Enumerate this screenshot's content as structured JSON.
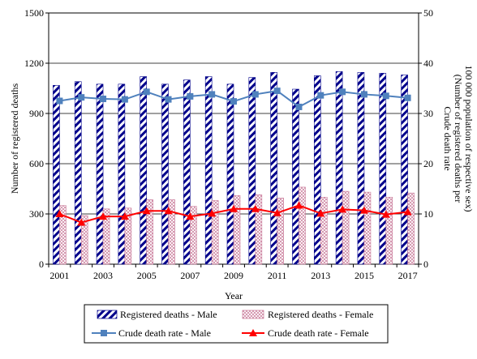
{
  "chart_data": {
    "type": "bar",
    "xlabel": "Year",
    "ylabel": "Number of registered deaths",
    "y2label_line1": "Crude death rate",
    "y2label_line2": "(Number of registered deaths per",
    "y2label_line3": "100 000 population of respective sex)",
    "ylim": [
      0,
      1500
    ],
    "y2lim": [
      0,
      50
    ],
    "yticks": [
      "0",
      "300",
      "600",
      "900",
      "1200",
      "1500"
    ],
    "y2ticks": [
      "0",
      "10",
      "20",
      "30",
      "40",
      "50"
    ],
    "categories": [
      "2001",
      "2002",
      "2003",
      "2004",
      "2005",
      "2006",
      "2007",
      "2008",
      "2009",
      "2010",
      "2011",
      "2012",
      "2013",
      "2014",
      "2015",
      "2016",
      "2017"
    ],
    "xtick_labels": [
      "2001",
      "2003",
      "2005",
      "2007",
      "2009",
      "2011",
      "2013",
      "2015",
      "2017"
    ],
    "grid": "horizontal",
    "legend_placement": "bottom",
    "bar_series": [
      {
        "name": "Registered deaths - Male",
        "color": "#00008B",
        "pattern": "diagonal-stripes",
        "values": [
          1068,
          1090,
          1075,
          1075,
          1120,
          1075,
          1100,
          1120,
          1075,
          1115,
          1145,
          1045,
          1125,
          1150,
          1145,
          1140,
          1130
        ]
      },
      {
        "name": "Registered deaths - Female",
        "color": "#C07090",
        "pattern": "crosshatch",
        "values": [
          350,
          290,
          330,
          335,
          385,
          385,
          345,
          380,
          410,
          415,
          395,
          460,
          400,
          435,
          430,
          400,
          425
        ]
      }
    ],
    "line_series": [
      {
        "name": "Crude death rate - Male",
        "color": "#4F81BD",
        "marker": "square",
        "values": [
          32.5,
          33.2,
          32.9,
          32.8,
          34.3,
          32.8,
          33.4,
          33.8,
          32.4,
          33.8,
          34.5,
          31.3,
          33.6,
          34.3,
          33.8,
          33.5,
          33.1
        ]
      },
      {
        "name": "Crude death rate - Female",
        "color": "#FF0000",
        "marker": "triangle",
        "values": [
          10.0,
          8.3,
          9.5,
          9.5,
          10.6,
          10.6,
          9.5,
          10.1,
          11.0,
          11.0,
          10.2,
          11.7,
          10.1,
          10.9,
          10.7,
          9.9,
          10.4
        ]
      }
    ]
  }
}
